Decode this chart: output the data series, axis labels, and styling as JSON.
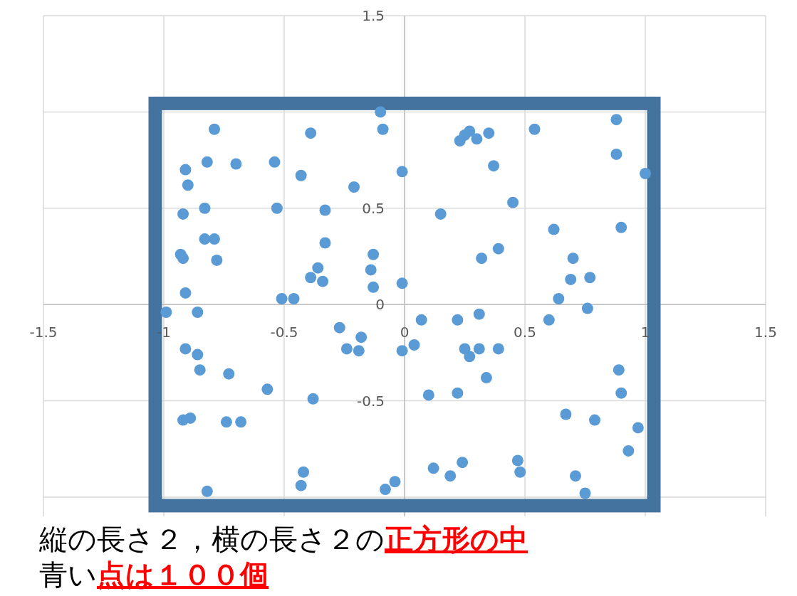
{
  "chart_data": {
    "type": "scatter",
    "color": "#5b9bd5",
    "marker": "circle",
    "grid": true,
    "xlim": [
      -1.5,
      1.5
    ],
    "ylim": [
      -1.1,
      1.5
    ],
    "xticks": [
      -1.5,
      -1,
      -0.5,
      0,
      0.5,
      1,
      1.5
    ],
    "yticks": [
      {
        "value": -1,
        "label": null
      },
      -0.5,
      0,
      0.5,
      {
        "value": 1,
        "label": null
      },
      1.5
    ],
    "x": [
      -0.79,
      -0.39,
      -0.09,
      -0.1,
      0.23,
      0.25,
      0.27,
      0.3,
      0.35,
      0.54,
      0.88,
      0.88,
      1.0,
      -0.91,
      -0.82,
      -0.7,
      -0.54,
      -0.43,
      -0.01,
      0.37,
      -0.9,
      -0.21,
      -0.92,
      -0.83,
      -0.53,
      -0.33,
      0.15,
      0.45,
      0.62,
      0.9,
      -0.83,
      -0.79,
      -0.33,
      0.39,
      -0.93,
      -0.92,
      -0.78,
      -0.13,
      0.32,
      0.7,
      -0.36,
      -0.14,
      -0.39,
      -0.34,
      0.69,
      0.77,
      -0.13,
      -0.01,
      -0.91,
      -0.51,
      -0.46,
      0.64,
      -0.99,
      -0.86,
      0.76,
      0.07,
      0.22,
      0.31,
      0.6,
      -0.27,
      -0.18,
      0.04,
      -0.91,
      -0.24,
      -0.19,
      -0.01,
      0.25,
      0.27,
      0.31,
      0.39,
      -0.86,
      -0.85,
      -0.73,
      0.89,
      0.34,
      -0.57,
      0.9,
      0.1,
      0.22,
      -0.38,
      -0.92,
      -0.89,
      -0.74,
      -0.68,
      0.67,
      0.79,
      0.97,
      0.93,
      0.47,
      0.48,
      -0.42,
      0.12,
      0.24,
      0.19,
      0.71,
      -0.43,
      -0.04,
      -0.08,
      -0.82,
      0.75
    ],
    "values": [
      0.91,
      0.89,
      0.91,
      1.0,
      0.85,
      0.88,
      0.9,
      0.86,
      0.89,
      0.91,
      0.96,
      0.78,
      0.68,
      0.7,
      0.74,
      0.73,
      0.74,
      0.67,
      0.69,
      0.72,
      0.62,
      0.61,
      0.47,
      0.5,
      0.5,
      0.49,
      0.47,
      0.53,
      0.39,
      0.4,
      0.34,
      0.34,
      0.32,
      0.29,
      0.26,
      0.24,
      0.23,
      0.26,
      0.24,
      0.24,
      0.19,
      0.18,
      0.14,
      0.12,
      0.13,
      0.14,
      0.09,
      0.11,
      0.06,
      0.03,
      0.03,
      0.03,
      -0.04,
      -0.04,
      -0.02,
      -0.08,
      -0.08,
      -0.05,
      -0.08,
      -0.12,
      -0.17,
      -0.21,
      -0.23,
      -0.23,
      -0.24,
      -0.24,
      -0.23,
      -0.27,
      -0.23,
      -0.23,
      -0.26,
      -0.34,
      -0.36,
      -0.34,
      -0.38,
      -0.44,
      -0.46,
      -0.47,
      -0.46,
      -0.49,
      -0.6,
      -0.59,
      -0.61,
      -0.61,
      -0.57,
      -0.6,
      -0.64,
      -0.76,
      -0.81,
      -0.87,
      -0.87,
      -0.85,
      -0.82,
      -0.89,
      -0.89,
      -0.94,
      -0.92,
      -0.96,
      -0.97,
      -0.98
    ],
    "annotations": [
      "縦の長さ２，横の長さ２の**正方形の中**",
      "青い**点は１００個**"
    ]
  }
}
